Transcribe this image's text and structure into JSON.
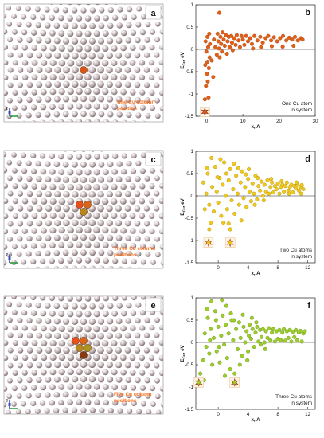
{
  "panels": [
    {
      "letter": "a",
      "caption_lines": [
        "One Cu column",
        "position"
      ],
      "cu_color": "#ff6f1a"
    },
    {
      "letter": "c",
      "caption_lines": [
        "Three Cu column",
        "positions"
      ],
      "cu_color": "#ff6f1a"
    },
    {
      "letter": "e",
      "caption_lines": [
        "Five Cu column",
        "positions"
      ],
      "cu_color": "#ff6f1a"
    }
  ],
  "axes_triad": {
    "labels": [
      "z",
      "x",
      "y"
    ]
  },
  "chart_data": [
    {
      "type": "scatter",
      "panel_label": "b",
      "annotation_lines": [
        "One Cu atom",
        "in system"
      ],
      "xlabel": "x, A",
      "ylabel": "E",
      "ylabel_sub": "Cu",
      "ylabel_suffix": ", eV",
      "xlim": [
        -3,
        30
      ],
      "ylim": [
        -1.5,
        1.0
      ],
      "xticks": [
        0,
        10,
        20,
        30
      ],
      "yticks": [
        1,
        0.5,
        0,
        -0.5,
        -1,
        -1.5
      ],
      "ytick_labels": [
        "1",
        "0.5",
        "0",
        "-0.5",
        "-1",
        "-1.5"
      ],
      "color": "#e06018",
      "edge": "#a83c05",
      "star_points": [
        [
          -0.5,
          -1.4
        ]
      ],
      "points": [
        [
          -0.5,
          -1.12
        ],
        [
          0.5,
          -1.08
        ],
        [
          -0.2,
          -0.82
        ],
        [
          0.3,
          -0.72
        ],
        [
          0.1,
          -0.55
        ],
        [
          0.6,
          -0.42
        ],
        [
          -0.4,
          -0.35
        ],
        [
          0.2,
          -0.28
        ],
        [
          0.8,
          -0.18
        ],
        [
          -0.1,
          -0.05
        ],
        [
          0.4,
          0.05
        ],
        [
          0.9,
          0.12
        ],
        [
          -0.3,
          0.18
        ],
        [
          0.2,
          0.28
        ],
        [
          0.7,
          0.35
        ],
        [
          1.4,
          -0.25
        ],
        [
          1.8,
          -0.62
        ],
        [
          2.0,
          0.22
        ],
        [
          2.4,
          0.05
        ],
        [
          2.8,
          -0.12
        ],
        [
          3.0,
          0.35
        ],
        [
          3.2,
          0.18
        ],
        [
          3.4,
          0.02
        ],
        [
          3.5,
          0.82
        ],
        [
          3.6,
          -0.18
        ],
        [
          3.8,
          0.28
        ],
        [
          4.0,
          0.12
        ],
        [
          4.2,
          -0.05
        ],
        [
          4.4,
          0.38
        ],
        [
          4.7,
          0.22
        ],
        [
          5.0,
          0.08
        ],
        [
          5.3,
          0.32
        ],
        [
          5.6,
          -0.1
        ],
        [
          5.8,
          0.18
        ],
        [
          6.1,
          0.28
        ],
        [
          6.4,
          0.05
        ],
        [
          6.8,
          0.3
        ],
        [
          7.0,
          0.15
        ],
        [
          7.2,
          -0.02
        ],
        [
          7.6,
          0.25
        ],
        [
          8.0,
          0.1
        ],
        [
          8.3,
          0.32
        ],
        [
          8.8,
          0.2
        ],
        [
          9.2,
          0.05
        ],
        [
          9.6,
          0.3
        ],
        [
          10.0,
          0.22
        ],
        [
          10.4,
          0.1
        ],
        [
          10.9,
          0.3
        ],
        [
          11.4,
          0.18
        ],
        [
          12.0,
          0.25
        ],
        [
          12.5,
          0.12
        ],
        [
          13.2,
          0.3
        ],
        [
          14.0,
          0.2
        ],
        [
          14.8,
          0.28
        ],
        [
          15.5,
          0.15
        ],
        [
          16.3,
          0.25
        ],
        [
          17.0,
          0.3
        ],
        [
          17.8,
          0.2
        ],
        [
          18.6,
          0.27
        ],
        [
          19.5,
          0.18
        ],
        [
          20.3,
          0.25
        ],
        [
          21.1,
          0.3
        ],
        [
          22.0,
          0.2
        ],
        [
          22.8,
          0.26
        ],
        [
          23.6,
          0.22
        ],
        [
          24.4,
          0.28
        ],
        [
          25.2,
          0.2
        ],
        [
          26.0,
          0.25
        ],
        [
          15.0,
          0.05
        ],
        [
          18.0,
          0.07
        ],
        [
          21.0,
          0.06
        ],
        [
          24.0,
          0.08
        ],
        [
          12.8,
          0.02
        ],
        [
          26.5,
          0.22
        ]
      ]
    },
    {
      "type": "scatter",
      "panel_label": "d",
      "annotation_lines": [
        "Two Cu atoms",
        "in system"
      ],
      "xlabel": "x, A",
      "ylabel": "E",
      "ylabel_sub": "Cu",
      "ylabel_suffix": ", eV",
      "xlim": [
        -3,
        13
      ],
      "ylim": [
        -1.5,
        1.0
      ],
      "xticks": [
        0,
        4,
        8,
        12
      ],
      "yticks": [
        1,
        0.5,
        0,
        -0.5,
        -1,
        -1.5
      ],
      "ytick_labels": [
        "1",
        "0.5",
        "0",
        "-0.5",
        "-1",
        "-1.5"
      ],
      "color": "#f0c81e",
      "edge": "#a88600",
      "star_points": [
        [
          -1.3,
          -1.05
        ],
        [
          1.6,
          -1.05
        ]
      ],
      "points": [
        [
          -1.2,
          -0.75
        ],
        [
          -1.0,
          -0.6
        ],
        [
          1.6,
          -0.75
        ],
        [
          1.4,
          -0.62
        ],
        [
          -2.0,
          0.3
        ],
        [
          -1.6,
          0.05
        ],
        [
          -1.4,
          0.5
        ],
        [
          -1.2,
          -0.2
        ],
        [
          -0.8,
          0.2
        ],
        [
          -0.6,
          -0.35
        ],
        [
          -0.4,
          0.65
        ],
        [
          -0.2,
          0.1
        ],
        [
          0.0,
          -0.15
        ],
        [
          0.2,
          0.4
        ],
        [
          0.4,
          -0.45
        ],
        [
          0.6,
          0.25
        ],
        [
          0.8,
          0.75
        ],
        [
          1.0,
          0.0
        ],
        [
          1.2,
          -0.3
        ],
        [
          1.4,
          0.35
        ],
        [
          1.6,
          0.6
        ],
        [
          1.8,
          -0.1
        ],
        [
          2.0,
          0.15
        ],
        [
          2.2,
          -0.4
        ],
        [
          2.4,
          0.45
        ],
        [
          2.6,
          0.05
        ],
        [
          2.8,
          -0.2
        ],
        [
          3.0,
          0.3
        ],
        [
          3.2,
          0.55
        ],
        [
          3.4,
          -0.05
        ],
        [
          3.6,
          0.2
        ],
        [
          3.8,
          -0.25
        ],
        [
          4.0,
          0.38
        ],
        [
          4.2,
          0.1
        ],
        [
          4.4,
          -0.12
        ],
        [
          4.6,
          0.28
        ],
        [
          4.8,
          0.05
        ],
        [
          5.0,
          0.45
        ],
        [
          5.2,
          -0.08
        ],
        [
          5.4,
          0.22
        ],
        [
          5.6,
          0.12
        ],
        [
          5.8,
          0.32
        ],
        [
          6.0,
          0.0
        ],
        [
          6.2,
          0.25
        ],
        [
          6.4,
          0.1
        ],
        [
          6.6,
          0.35
        ],
        [
          6.8,
          0.05
        ],
        [
          7.0,
          0.2
        ],
        [
          7.2,
          0.3
        ],
        [
          7.4,
          0.08
        ],
        [
          7.6,
          0.22
        ],
        [
          7.8,
          0.15
        ],
        [
          8.0,
          0.28
        ],
        [
          8.2,
          0.05
        ],
        [
          8.4,
          0.2
        ],
        [
          8.6,
          0.25
        ],
        [
          8.8,
          0.1
        ],
        [
          9.0,
          0.22
        ],
        [
          9.2,
          0.3
        ],
        [
          9.4,
          0.12
        ],
        [
          9.6,
          0.2
        ],
        [
          9.8,
          0.25
        ],
        [
          10.0,
          0.08
        ],
        [
          10.2,
          0.22
        ],
        [
          10.4,
          0.18
        ],
        [
          10.6,
          0.26
        ],
        [
          10.8,
          0.12
        ],
        [
          11.0,
          0.2
        ],
        [
          11.2,
          0.24
        ],
        [
          11.4,
          0.15
        ],
        [
          -0.9,
          0.85
        ],
        [
          0.3,
          0.82
        ],
        [
          2.1,
          0.72
        ],
        [
          3.1,
          -0.55
        ],
        [
          4.1,
          0.6
        ],
        [
          -1.8,
          -0.3
        ],
        [
          1.1,
          0.5
        ],
        [
          5.3,
          0.4
        ],
        [
          0.7,
          -0.6
        ],
        [
          2.7,
          0.62
        ],
        [
          -0.1,
          0.42
        ],
        [
          6.1,
          -0.1
        ],
        [
          7.1,
          0.38
        ],
        [
          8.5,
          0.33
        ],
        [
          9.5,
          0.05
        ],
        [
          10.5,
          0.3
        ],
        [
          11.1,
          0.05
        ],
        [
          -1.5,
          0.62
        ],
        [
          3.7,
          0.48
        ],
        [
          4.9,
          -0.2
        ]
      ]
    },
    {
      "type": "scatter",
      "panel_label": "f",
      "annotation_lines": [
        "Three Cu atoms",
        "in system"
      ],
      "xlabel": "x, A",
      "ylabel": "E",
      "ylabel_sub": "Cu",
      "ylabel_suffix": ", eV",
      "xlim": [
        -3,
        13
      ],
      "ylim": [
        -1.5,
        1.0
      ],
      "xticks": [
        0,
        4,
        8,
        12
      ],
      "yticks": [
        1,
        0.5,
        0,
        -0.5,
        -1,
        -1.5
      ],
      "ytick_labels": [
        "1",
        "0.5",
        "0",
        "-0.5",
        "-1",
        "-1.5"
      ],
      "color": "#9ccd2a",
      "edge": "#5f8a0c",
      "star_points": [
        [
          -2.6,
          -0.9
        ],
        [
          2.2,
          -0.9
        ]
      ],
      "points": [
        [
          -2.4,
          -0.7
        ],
        [
          -2.0,
          -0.4
        ],
        [
          -1.8,
          0.2
        ],
        [
          -1.6,
          -0.1
        ],
        [
          -1.4,
          0.55
        ],
        [
          -1.2,
          -0.25
        ],
        [
          -1.0,
          0.3
        ],
        [
          -0.8,
          -0.5
        ],
        [
          -0.6,
          0.1
        ],
        [
          -0.4,
          0.7
        ],
        [
          -0.2,
          -0.2
        ],
        [
          0.0,
          0.35
        ],
        [
          0.2,
          -0.45
        ],
        [
          0.4,
          0.15
        ],
        [
          0.6,
          0.6
        ],
        [
          0.8,
          -0.05
        ],
        [
          1.0,
          0.4
        ],
        [
          1.2,
          -0.35
        ],
        [
          1.4,
          0.2
        ],
        [
          1.6,
          -0.6
        ],
        [
          1.8,
          0.5
        ],
        [
          2.0,
          0.05
        ],
        [
          2.2,
          -0.7
        ],
        [
          2.4,
          0.3
        ],
        [
          2.6,
          -0.15
        ],
        [
          2.8,
          0.45
        ],
        [
          3.0,
          0.1
        ],
        [
          3.2,
          -0.3
        ],
        [
          3.4,
          0.35
        ],
        [
          3.6,
          0.0
        ],
        [
          3.8,
          0.25
        ],
        [
          4.0,
          -0.2
        ],
        [
          4.2,
          0.4
        ],
        [
          4.4,
          0.08
        ],
        [
          4.6,
          0.3
        ],
        [
          4.8,
          -0.1
        ],
        [
          5.0,
          0.22
        ],
        [
          5.2,
          0.35
        ],
        [
          5.4,
          0.02
        ],
        [
          5.6,
          0.28
        ],
        [
          5.8,
          0.12
        ],
        [
          6.0,
          0.3
        ],
        [
          6.2,
          0.0
        ],
        [
          6.4,
          0.25
        ],
        [
          6.6,
          0.1
        ],
        [
          6.8,
          0.32
        ],
        [
          7.0,
          0.05
        ],
        [
          7.2,
          0.22
        ],
        [
          7.4,
          0.3
        ],
        [
          7.6,
          0.02
        ],
        [
          7.8,
          0.25
        ],
        [
          8.0,
          0.08
        ],
        [
          8.2,
          0.28
        ],
        [
          8.4,
          0.05
        ],
        [
          8.6,
          0.22
        ],
        [
          8.8,
          0.3
        ],
        [
          9.0,
          0.04
        ],
        [
          9.2,
          0.25
        ],
        [
          9.4,
          0.1
        ],
        [
          9.6,
          0.28
        ],
        [
          9.8,
          0.02
        ],
        [
          10.0,
          0.24
        ],
        [
          10.2,
          0.12
        ],
        [
          10.4,
          0.28
        ],
        [
          10.6,
          0.05
        ],
        [
          10.8,
          0.22
        ],
        [
          11.0,
          0.26
        ],
        [
          11.2,
          0.02
        ],
        [
          11.4,
          0.2
        ],
        [
          11.6,
          0.25
        ],
        [
          -0.9,
          0.92
        ],
        [
          0.5,
          0.95
        ],
        [
          1.1,
          0.82
        ],
        [
          -1.9,
          -0.85
        ],
        [
          -1.5,
          0.75
        ],
        [
          0.9,
          -0.75
        ],
        [
          2.5,
          -0.85
        ],
        [
          3.3,
          0.62
        ],
        [
          4.5,
          0.55
        ],
        [
          -0.3,
          0.5
        ],
        [
          1.7,
          0.65
        ],
        [
          2.9,
          -0.5
        ],
        [
          3.9,
          -0.4
        ],
        [
          5.1,
          0.45
        ],
        [
          6.3,
          -0.15
        ],
        [
          0.1,
          -0.1
        ],
        [
          -1.1,
          0.05
        ],
        [
          2.1,
          0.5
        ],
        [
          4.1,
          0.15
        ],
        [
          5.7,
          -0.05
        ]
      ]
    }
  ]
}
